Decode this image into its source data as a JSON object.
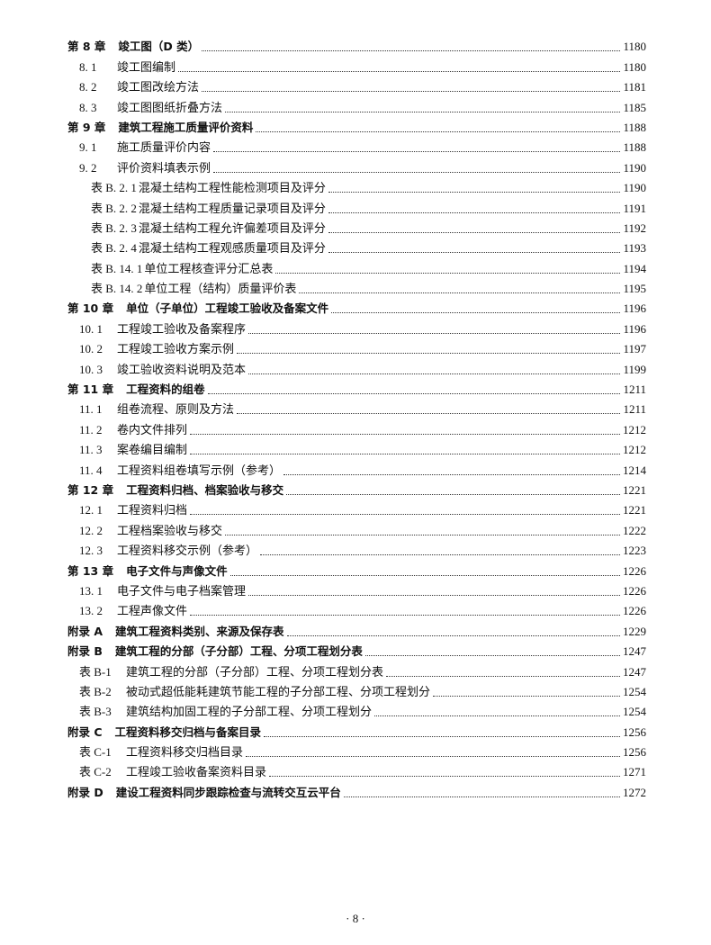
{
  "entries": [
    {
      "level": "chapter",
      "num": "第 8 章",
      "title": "竣工图（D 类）",
      "page": "1180"
    },
    {
      "level": "section",
      "num": "8. 1",
      "title": "竣工图编制",
      "page": "1180"
    },
    {
      "level": "section",
      "num": "8. 2",
      "title": "竣工图改绘方法",
      "page": "1181"
    },
    {
      "level": "section",
      "num": "8. 3",
      "title": "竣工图图纸折叠方法",
      "page": "1185"
    },
    {
      "level": "chapter",
      "num": "第 9 章",
      "title": "建筑工程施工质量评价资料",
      "page": "1188"
    },
    {
      "level": "section",
      "num": "9. 1",
      "title": "施工质量评价内容",
      "page": "1188"
    },
    {
      "level": "section",
      "num": "9. 2",
      "title": "评价资料填表示例",
      "page": "1190"
    },
    {
      "level": "table",
      "num": "表 B. 2. 1",
      "title": "混凝土结构工程性能检测项目及评分",
      "page": "1190"
    },
    {
      "level": "table",
      "num": "表 B. 2. 2",
      "title": "混凝土结构工程质量记录项目及评分",
      "page": "1191"
    },
    {
      "level": "table",
      "num": "表 B. 2. 3",
      "title": "混凝土结构工程允许偏差项目及评分",
      "page": "1192"
    },
    {
      "level": "table",
      "num": "表 B. 2. 4",
      "title": "混凝土结构工程观感质量项目及评分",
      "page": "1193"
    },
    {
      "level": "table",
      "num": "表 B. 14. 1",
      "title": "单位工程核查评分汇总表",
      "page": "1194"
    },
    {
      "level": "table",
      "num": "表 B. 14. 2",
      "title": "单位工程（结构）质量评价表",
      "page": "1195"
    },
    {
      "level": "chapter",
      "num": "第 10 章",
      "title": "单位（子单位）工程竣工验收及备案文件",
      "page": "1196"
    },
    {
      "level": "section",
      "num": "10. 1",
      "title": "工程竣工验收及备案程序",
      "page": "1196"
    },
    {
      "level": "section",
      "num": "10. 2",
      "title": "工程竣工验收方案示例",
      "page": "1197"
    },
    {
      "level": "section",
      "num": "10. 3",
      "title": "竣工验收资料说明及范本",
      "page": "1199"
    },
    {
      "level": "chapter",
      "num": "第 11 章",
      "title": "工程资料的组卷",
      "page": "1211"
    },
    {
      "level": "section",
      "num": "11. 1",
      "title": "组卷流程、原则及方法",
      "page": "1211"
    },
    {
      "level": "section",
      "num": "11. 2",
      "title": "卷内文件排列",
      "page": "1212"
    },
    {
      "level": "section",
      "num": "11. 3",
      "title": "案卷编目编制",
      "page": "1212"
    },
    {
      "level": "section",
      "num": "11. 4",
      "title": "工程资料组卷填写示例（参考）",
      "page": "1214"
    },
    {
      "level": "chapter",
      "num": "第 12 章",
      "title": "工程资料归档、档案验收与移交",
      "page": "1221"
    },
    {
      "level": "section",
      "num": "12. 1",
      "title": "工程资料归档",
      "page": "1221"
    },
    {
      "level": "section",
      "num": "12. 2",
      "title": "工程档案验收与移交",
      "page": "1222"
    },
    {
      "level": "section",
      "num": "12. 3",
      "title": "工程资料移交示例（参考）",
      "page": "1223"
    },
    {
      "level": "chapter",
      "num": "第 13 章",
      "title": "电子文件与声像文件",
      "page": "1226"
    },
    {
      "level": "section",
      "num": "13. 1",
      "title": "电子文件与电子档案管理",
      "page": "1226"
    },
    {
      "level": "section",
      "num": "13. 2",
      "title": "工程声像文件",
      "page": "1226"
    },
    {
      "level": "chapter",
      "num": "附录 A",
      "title": "建筑工程资料类别、来源及保存表",
      "page": "1229"
    },
    {
      "level": "chapter",
      "num": "附录 B",
      "title": "建筑工程的分部（子分部）工程、分项工程划分表",
      "page": "1247"
    },
    {
      "level": "apptable",
      "num": "表 B-1",
      "title": "建筑工程的分部（子分部）工程、分项工程划分表",
      "page": "1247"
    },
    {
      "level": "apptable",
      "num": "表 B-2",
      "title": "被动式超低能耗建筑节能工程的子分部工程、分项工程划分",
      "page": "1254"
    },
    {
      "level": "apptable",
      "num": "表 B-3",
      "title": "建筑结构加固工程的子分部工程、分项工程划分",
      "page": "1254"
    },
    {
      "level": "chapter",
      "num": "附录 C",
      "title": "工程资料移交归档与备案目录",
      "page": "1256"
    },
    {
      "level": "apptable",
      "num": "表 C-1",
      "title": "工程资料移交归档目录",
      "page": "1256"
    },
    {
      "level": "apptable",
      "num": "表 C-2",
      "title": "工程竣工验收备案资料目录",
      "page": "1271"
    },
    {
      "level": "chapter",
      "num": "附录 D",
      "title": "建设工程资料同步跟踪检查与流转交互云平台",
      "page": "1272"
    }
  ],
  "footer": {
    "page_number": "· 8 ·"
  }
}
